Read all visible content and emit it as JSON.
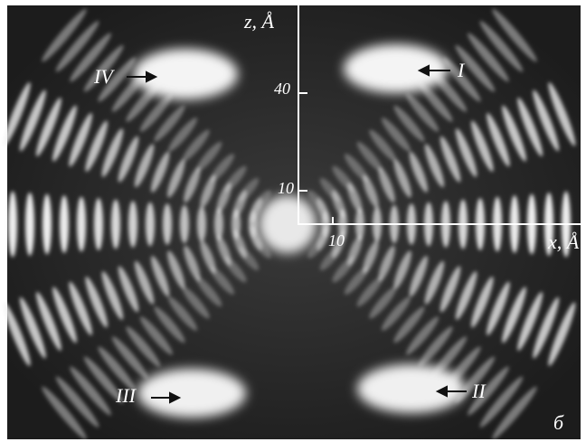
{
  "axes": {
    "z_label": "z, Å",
    "x_label": "x, Å",
    "z_ticks": [
      "40",
      "10"
    ],
    "x_ticks": [
      "10"
    ]
  },
  "spots": [
    {
      "label": "IV"
    },
    {
      "label": "I"
    },
    {
      "label": "III"
    },
    {
      "label": "II"
    }
  ],
  "panel_label": "б"
}
